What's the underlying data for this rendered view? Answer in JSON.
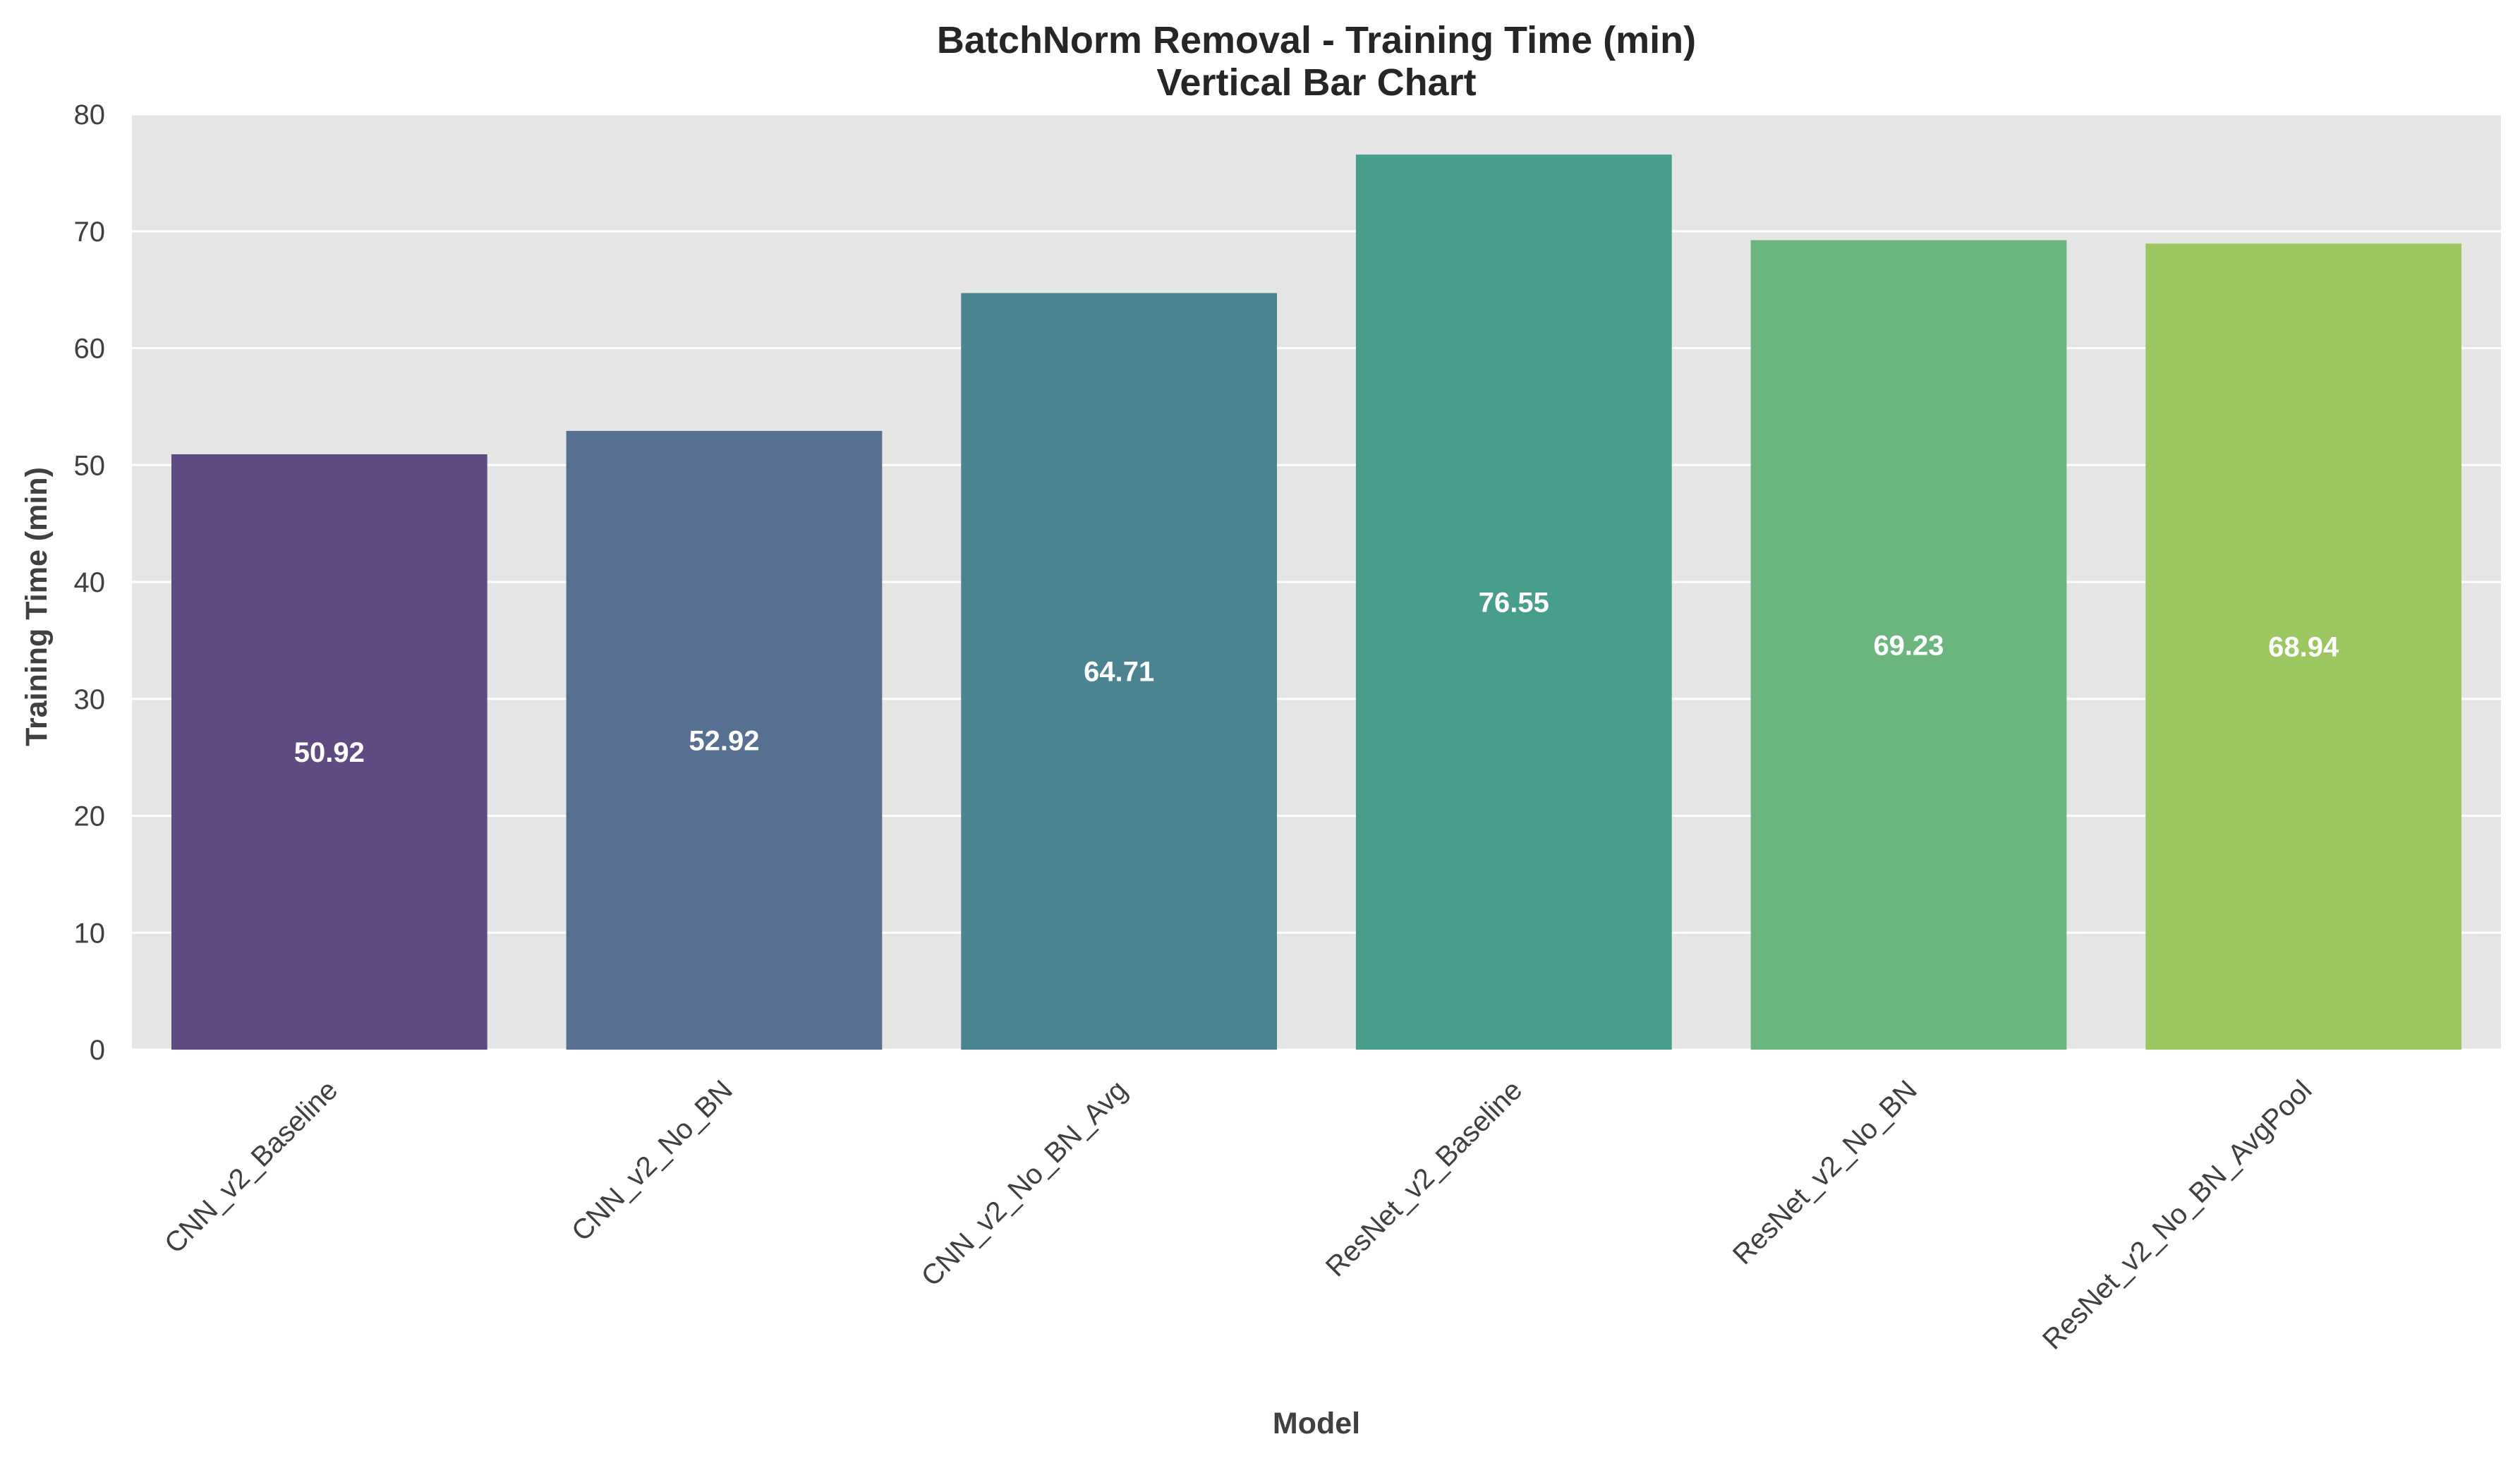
{
  "chart_data": {
    "type": "bar",
    "title": "BatchNorm Removal - Training Time (min)",
    "subtitle": "Vertical Bar Chart",
    "xlabel": "Model",
    "ylabel": "Training Time (min)",
    "categories": [
      "CNN_v2_Baseline",
      "CNN_v2_No_BN",
      "CNN_v2_No_BN_Avg",
      "ResNet_v2_Baseline",
      "ResNet_v2_No_BN",
      "ResNet_v2_No_BN_AvgPool"
    ],
    "values": [
      50.92,
      52.92,
      64.71,
      76.55,
      69.23,
      68.94
    ],
    "value_labels": [
      "50.92",
      "52.92",
      "64.71",
      "76.55",
      "69.23",
      "68.94"
    ],
    "ylim": [
      0,
      80
    ],
    "yticks": [
      0,
      10,
      20,
      30,
      40,
      50,
      60,
      70,
      80
    ],
    "grid": true,
    "colors": [
      "#5f4b82",
      "#576f91",
      "#4b8490",
      "#479e8c",
      "#6bb67f",
      "#9cc760"
    ],
    "background": "#e5e5e5"
  }
}
